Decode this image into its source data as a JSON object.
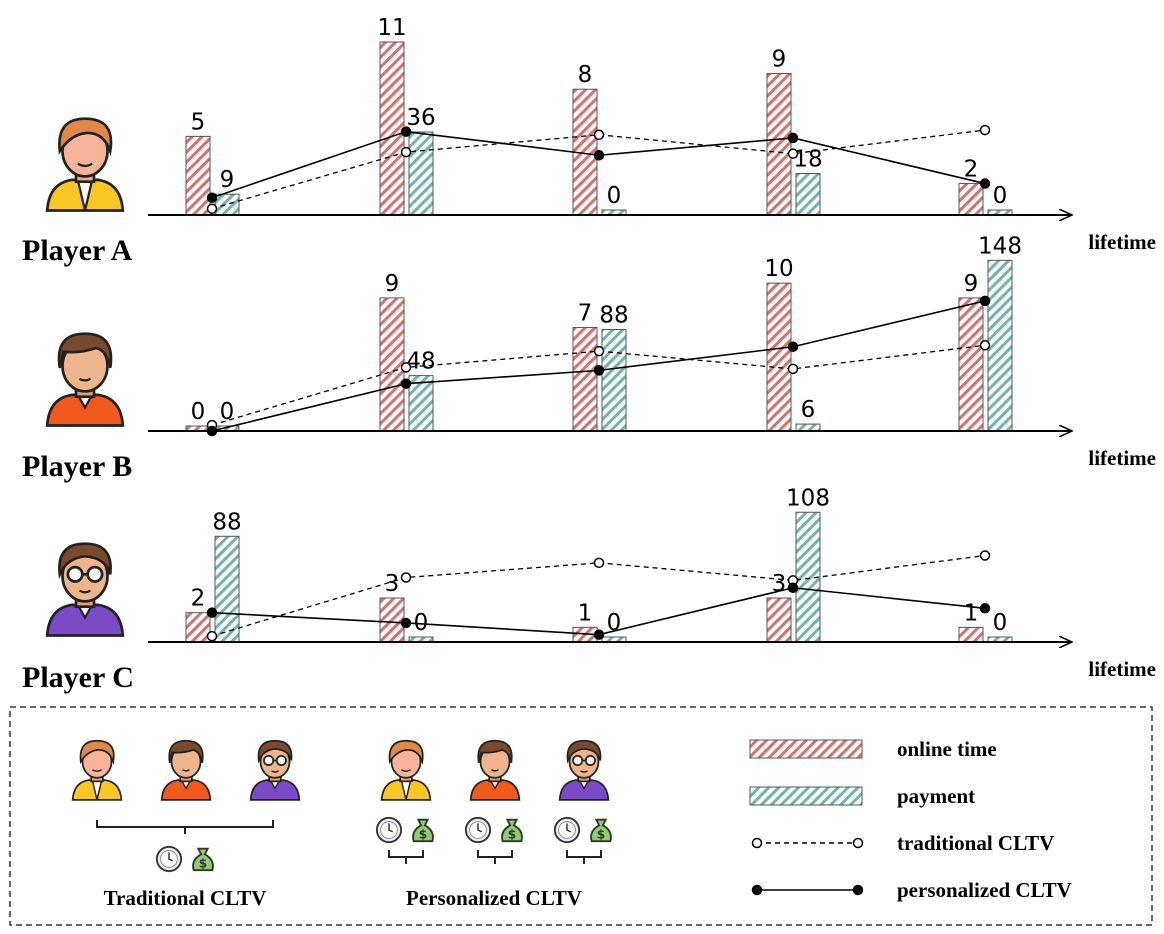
{
  "chart_data": [
    {
      "type": "bar-line",
      "title": "Player A",
      "xlabel": "lifetime",
      "categories": [
        null,
        null,
        null,
        null,
        null
      ],
      "ylim": [
        0,
        11
      ],
      "y2lim": [
        0,
        75
      ],
      "series": [
        {
          "name": "online time",
          "color": "#d9706e",
          "kind": "bar",
          "values": [
            5,
            11,
            8,
            9,
            2
          ]
        },
        {
          "name": "payment",
          "color": "#6fb5ab",
          "kind": "bar",
          "axis": "y2",
          "values": [
            9,
            36,
            0,
            18,
            0
          ]
        },
        {
          "name": "traditional CLTV",
          "color": "#000000",
          "kind": "line",
          "dash": true,
          "values": [
            0.4,
            4.0,
            5.1,
            3.9,
            5.4
          ]
        },
        {
          "name": "personalized CLTV",
          "color": "#000000",
          "kind": "line",
          "dash": false,
          "values": [
            1.1,
            5.3,
            3.8,
            4.9,
            2.0
          ]
        }
      ]
    },
    {
      "type": "bar-line",
      "title": "Player B",
      "xlabel": "lifetime",
      "categories": [
        null,
        null,
        null,
        null,
        null
      ],
      "ylim": [
        0,
        11.7
      ],
      "y2lim": [
        0,
        150
      ],
      "series": [
        {
          "name": "online time",
          "color": "#d9706e",
          "kind": "bar",
          "values": [
            0,
            9,
            7,
            10,
            9
          ]
        },
        {
          "name": "payment",
          "color": "#6fb5ab",
          "kind": "bar",
          "axis": "y2",
          "values": [
            0,
            48,
            88,
            6,
            148
          ]
        },
        {
          "name": "traditional CLTV",
          "color": "#000000",
          "kind": "line",
          "dash": true,
          "values": [
            0.4,
            4.3,
            5.4,
            4.2,
            5.8
          ]
        },
        {
          "name": "personalized CLTV",
          "color": "#000000",
          "kind": "line",
          "dash": false,
          "values": [
            0,
            3.2,
            4.1,
            5.7,
            8.8
          ]
        }
      ]
    },
    {
      "type": "bar-line",
      "title": "Player C",
      "xlabel": "lifetime",
      "categories": [
        null,
        null,
        null,
        null,
        null
      ],
      "ylim": [
        0,
        11.8
      ],
      "y2lim": [
        0,
        144
      ],
      "series": [
        {
          "name": "online time",
          "color": "#d9706e",
          "kind": "bar",
          "values": [
            2,
            3,
            1,
            3,
            1
          ]
        },
        {
          "name": "payment",
          "color": "#6fb5ab",
          "kind": "bar",
          "axis": "y2",
          "values": [
            88,
            0,
            0,
            108,
            0
          ]
        },
        {
          "name": "traditional CLTV",
          "color": "#000000",
          "kind": "line",
          "dash": true,
          "values": [
            0.4,
            4.4,
            5.4,
            4.2,
            5.9
          ]
        },
        {
          "name": "personalized CLTV",
          "color": "#000000",
          "kind": "line",
          "dash": false,
          "values": [
            2.0,
            1.3,
            0.5,
            3.7,
            2.3
          ]
        }
      ]
    }
  ],
  "legend": {
    "groups": [
      "Traditional CLTV",
      "Personalized CLTV"
    ]
  }
}
